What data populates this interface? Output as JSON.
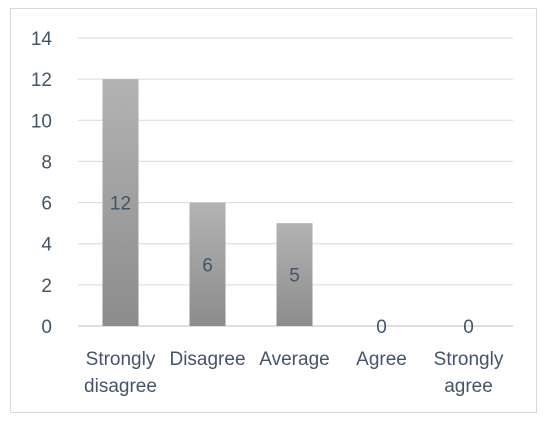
{
  "chart_data": {
    "type": "bar",
    "categories": [
      "Strongly disagree",
      "Disagree",
      "Average",
      "Agree",
      "Strongly agree"
    ],
    "category_lines": [
      [
        "Strongly",
        "disagree"
      ],
      [
        "Disagree"
      ],
      [
        "Average"
      ],
      [
        "Agree"
      ],
      [
        "Strongly",
        "agree"
      ]
    ],
    "values": [
      12,
      6,
      5,
      0,
      0
    ],
    "data_labels": [
      "12",
      "6",
      "5",
      "0",
      "0"
    ],
    "ylim": [
      0,
      14
    ],
    "yticks": [
      "0",
      "2",
      "4",
      "6",
      "8",
      "10",
      "12",
      "14"
    ],
    "grid": true,
    "legend": "none",
    "colors": {
      "bar_top": "#b3b3b3",
      "bar_bottom": "#8c8c8c",
      "text": "#44546a"
    }
  }
}
